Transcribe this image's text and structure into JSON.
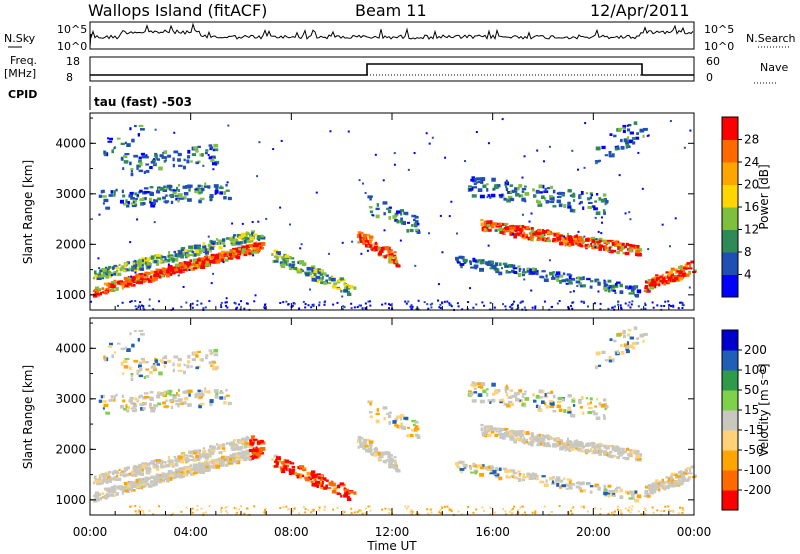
{
  "header": {
    "station": "Wallops Island (fitACF)",
    "beam": "Beam 11",
    "date": "12/Apr/2011"
  },
  "top_panels": {
    "nsky_label": "N.Sky",
    "nsky_ticks": [
      "10^5",
      "10^0"
    ],
    "nsearch_label": "N.Search",
    "nsearch_ticks": [
      "10^5",
      "10^0"
    ],
    "freq_label_1": "Freq.",
    "freq_label_2": "[MHz]",
    "freq_ticks": [
      "18",
      "8"
    ],
    "nave_label": "Nave",
    "nave_ticks": [
      "60",
      "0"
    ],
    "cpid_label": "CPID",
    "cpid_text": "tau (fast) -503"
  },
  "colors": {
    "power_scale": [
      "#0000ff",
      "#1f4fb5",
      "#2e8b57",
      "#7fbf3f",
      "#ffd700",
      "#ffa500",
      "#ff6a00",
      "#ff0000"
    ],
    "velocity_scale": [
      "#ff0000",
      "#ff6a00",
      "#ffa500",
      "#ffd27a",
      "#c8c8c0",
      "#7fd04a",
      "#2e9a4a",
      "#1f5fb5",
      "#0000cc"
    ]
  },
  "chart_data": [
    {
      "type": "heatmap",
      "name": "power",
      "ylabel": "Slant Range [km]",
      "yticks": [
        "4000",
        "3000",
        "2000",
        "1000"
      ],
      "ylim": [
        700,
        4600
      ],
      "xlim": [
        0,
        24
      ],
      "colorbar_label": "Power [dB]",
      "colorbar_ticks": [
        "28",
        "24",
        "20",
        "16",
        "12",
        "8",
        "4"
      ],
      "colorbar_range": [
        0,
        32
      ]
    },
    {
      "type": "heatmap",
      "name": "velocity",
      "ylabel": "Slant Range [km]",
      "yticks": [
        "4000",
        "3000",
        "2000",
        "1000"
      ],
      "ylim": [
        700,
        4600
      ],
      "xlim": [
        0,
        24
      ],
      "colorbar_label": "Velocity [m s⁻¹]",
      "colorbar_ticks": [
        "200",
        "100",
        "50",
        "15",
        "-15",
        "-50",
        "-100",
        "-200"
      ]
    }
  ],
  "x_axis": {
    "ticks": [
      "00:00",
      "04:00",
      "08:00",
      "12:00",
      "16:00",
      "20:00",
      "00:00"
    ],
    "label": "Time UT"
  }
}
